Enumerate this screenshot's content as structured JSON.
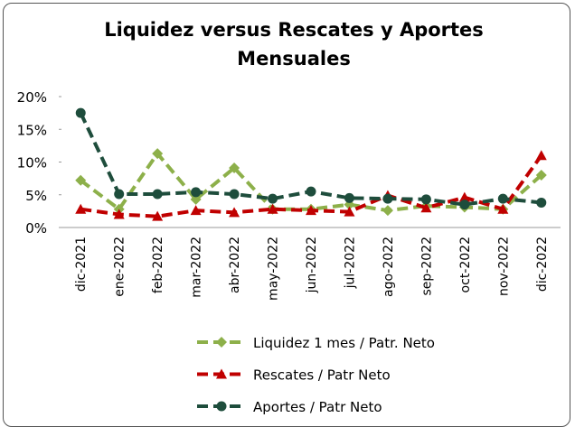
{
  "chart_data": {
    "type": "line",
    "title": [
      "Liquidez versus Rescates y Aportes",
      "Mensuales"
    ],
    "categories": [
      "dic-2021",
      "ene-2022",
      "feb-2022",
      "mar-2022",
      "abr-2022",
      "may-2022",
      "jun-2022",
      "jul-2022",
      "ago-2022",
      "sep-2022",
      "oct-2022",
      "nov-2022",
      "dic-2022"
    ],
    "series": [
      {
        "name": "Liquidez 1 mes / Patr. Neto",
        "color": "#8db04a",
        "marker": "diamond",
        "values": [
          7.2,
          2.8,
          11.3,
          4.3,
          9.1,
          2.8,
          2.8,
          3.5,
          2.6,
          3.3,
          3.1,
          2.8,
          8.0
        ]
      },
      {
        "name": "Rescates / Patr Neto",
        "color": "#c00000",
        "marker": "triangle",
        "values": [
          2.8,
          2.0,
          1.7,
          2.6,
          2.3,
          2.8,
          2.6,
          2.4,
          4.9,
          3.0,
          4.6,
          2.8,
          11.0
        ]
      },
      {
        "name": "Aportes / Patr Neto",
        "color": "#1e4d3c",
        "marker": "circle",
        "values": [
          17.5,
          5.1,
          5.1,
          5.4,
          5.1,
          4.4,
          5.5,
          4.5,
          4.4,
          4.3,
          3.5,
          4.4,
          3.8
        ]
      }
    ],
    "ylim": [
      0,
      20
    ],
    "yticks": [
      {
        "value": 0,
        "label": "0%"
      },
      {
        "value": 5,
        "label": "5%"
      },
      {
        "value": 10,
        "label": "10%"
      },
      {
        "value": 15,
        "label": "15%"
      },
      {
        "value": 20,
        "label": "20%"
      }
    ],
    "grid": false,
    "legend": "bottom"
  }
}
